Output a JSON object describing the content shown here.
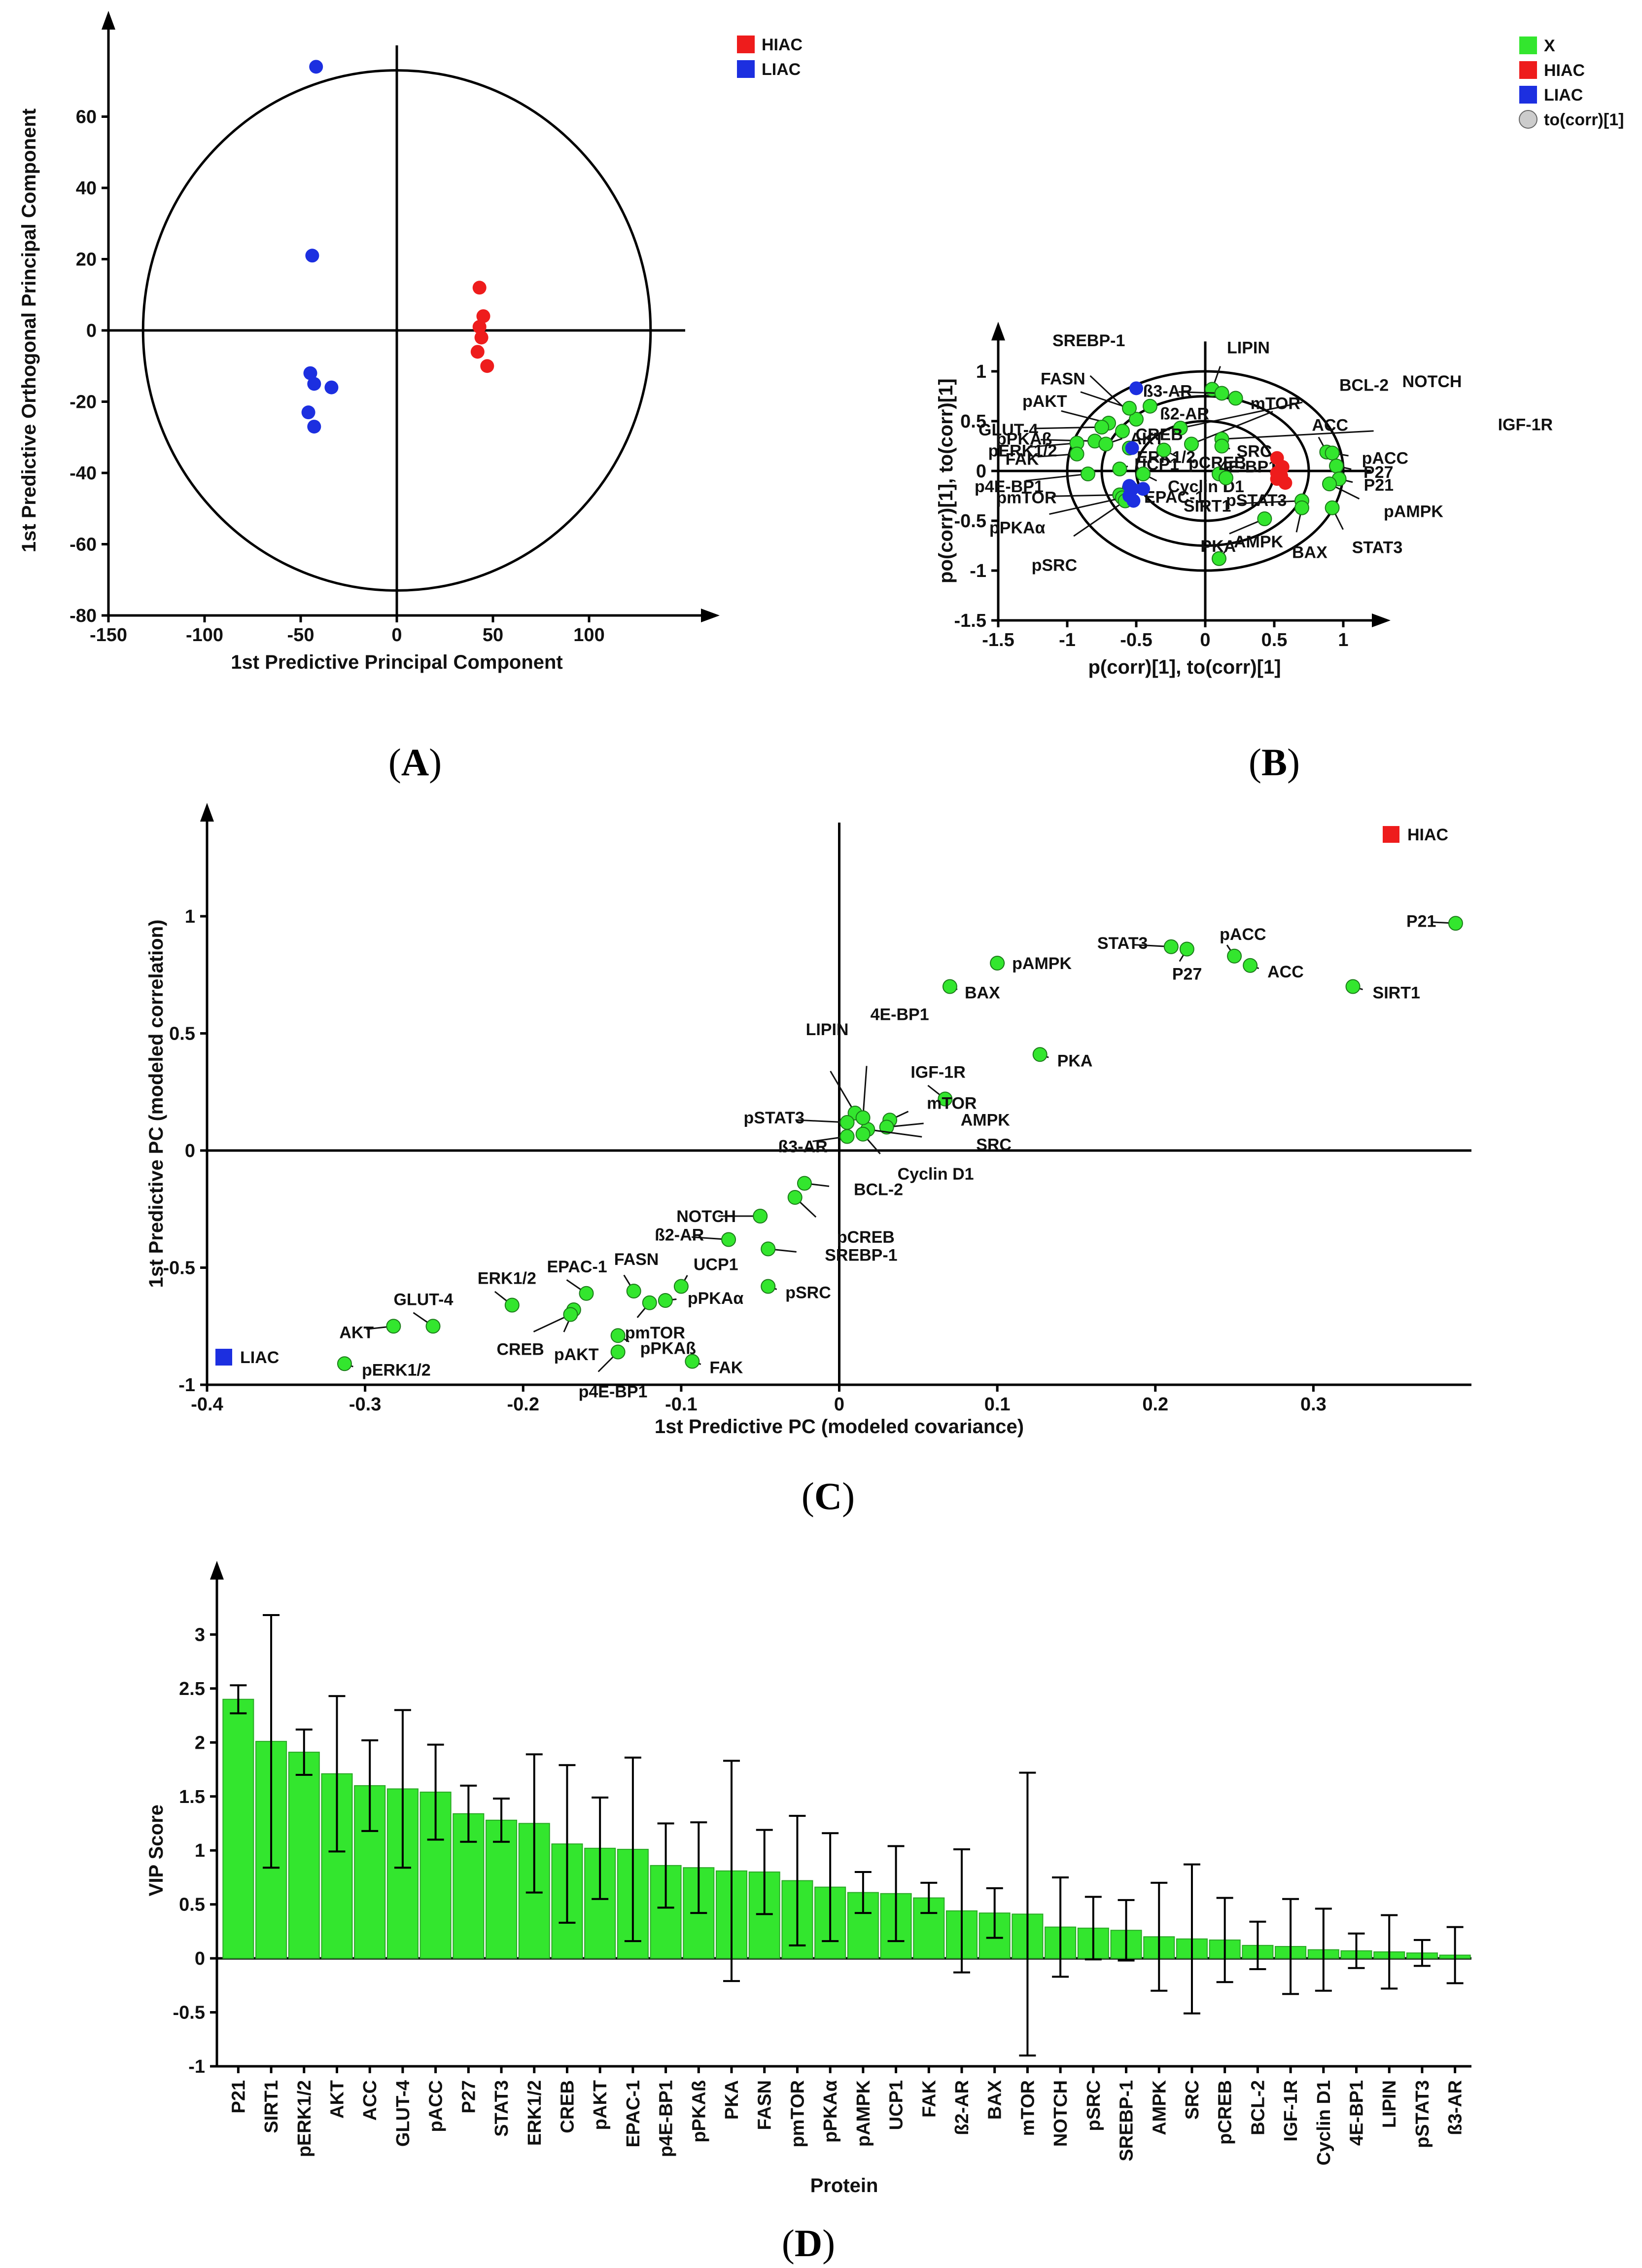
{
  "panel_labels": [
    "A",
    "B",
    "C",
    "D"
  ],
  "colors": {
    "green": "#33e62e",
    "red": "#ee1c1c",
    "blue": "#1c2fe0",
    "grey": "#cccccc"
  },
  "chart_data": [
    {
      "id": "A",
      "type": "scatter",
      "xlabel": "1st Predictive Principal Component",
      "ylabel": "1st Predictive Orthogonal Principal Component",
      "xlim": [
        -150,
        150
      ],
      "ylim": [
        -80,
        80
      ],
      "xticks": [
        -150,
        -100,
        -50,
        0,
        50,
        100
      ],
      "yticks": [
        -80,
        -60,
        -40,
        -20,
        0,
        20,
        40,
        60
      ],
      "ellipse": {
        "rx": 132,
        "ry": 73
      },
      "legend": [
        {
          "label": "HIAC",
          "color": "#ee1c1c"
        },
        {
          "label": "LIAC",
          "color": "#1c2fe0"
        }
      ],
      "series": [
        {
          "name": "HIAC",
          "color": "#ee1c1c",
          "points": [
            [
              43,
              12
            ],
            [
              45,
              4
            ],
            [
              43,
              1
            ],
            [
              44,
              -2
            ],
            [
              42,
              -6
            ],
            [
              47,
              -10
            ]
          ]
        },
        {
          "name": "LIAC",
          "color": "#1c2fe0",
          "points": [
            [
              -42,
              74
            ],
            [
              -44,
              21
            ],
            [
              -45,
              -12
            ],
            [
              -43,
              -15
            ],
            [
              -34,
              -16
            ],
            [
              -46,
              -23
            ],
            [
              -43,
              -27
            ]
          ]
        }
      ]
    },
    {
      "id": "B",
      "type": "scatter",
      "xlabel": "p(corr)[1], to(corr)[1]",
      "ylabel": "po(corr)[1], to(corr)[1]",
      "xlim": [
        -1.5,
        1.2
      ],
      "ylim": [
        -1.5,
        1.3
      ],
      "xticks": [
        -1.5,
        -1,
        -0.5,
        0,
        0.5,
        1
      ],
      "yticks": [
        -1.5,
        -1,
        -0.5,
        0,
        0.5,
        1
      ],
      "circles": [
        0.5,
        0.75,
        1.0
      ],
      "legend": [
        {
          "label": "X",
          "color": "#33e62e"
        },
        {
          "label": "HIAC",
          "color": "#ee1c1c"
        },
        {
          "label": "LIAC",
          "color": "#1c2fe0"
        },
        {
          "label": "to(corr)[1]",
          "color": "#cccccc"
        }
      ],
      "points": [
        {
          "label": "LIPIN",
          "x": 0.05,
          "y": 0.82
        },
        {
          "label": "ß3-AR",
          "x": 0.12,
          "y": 0.78
        },
        {
          "label": "mTOR",
          "x": 0.22,
          "y": 0.73
        },
        {
          "label": "SREBP-1",
          "x": -0.5,
          "y": 0.52
        },
        {
          "label": "FASN",
          "x": -0.55,
          "y": 0.63
        },
        {
          "label": "ß2-AR",
          "x": -0.4,
          "y": 0.65
        },
        {
          "label": "pAKT",
          "x": -0.7,
          "y": 0.48
        },
        {
          "label": "GLUT-4",
          "x": -0.75,
          "y": 0.44
        },
        {
          "label": "AKT",
          "x": -0.6,
          "y": 0.4
        },
        {
          "label": "NOTCH",
          "x": -0.18,
          "y": 0.43
        },
        {
          "label": "BCL-2",
          "x": -0.1,
          "y": 0.27
        },
        {
          "label": "IGF-1R",
          "x": 0.12,
          "y": 0.32
        },
        {
          "label": "pPKAß",
          "x": -0.8,
          "y": 0.3
        },
        {
          "label": "CREB",
          "x": -0.72,
          "y": 0.27
        },
        {
          "label": "pERK1/2",
          "x": -0.93,
          "y": 0.28
        },
        {
          "label": "ERK1/2",
          "x": -0.55,
          "y": 0.23
        },
        {
          "label": "SRC",
          "x": 0.12,
          "y": 0.25
        },
        {
          "label": "pCREB",
          "x": -0.3,
          "y": 0.21
        },
        {
          "label": "FAK",
          "x": -0.93,
          "y": 0.17
        },
        {
          "label": "ACC",
          "x": 0.88,
          "y": 0.19
        },
        {
          "label": "pACC",
          "x": 0.92,
          "y": 0.18
        },
        {
          "label": "P27",
          "x": 0.95,
          "y": 0.05
        },
        {
          "label": "UCP1",
          "x": -0.62,
          "y": 0.02
        },
        {
          "label": "4E-BP1",
          "x": 0.1,
          "y": -0.03
        },
        {
          "label": "Cyclin D1",
          "x": -0.45,
          "y": -0.03
        },
        {
          "label": "pSTAT3",
          "x": 0.15,
          "y": -0.07
        },
        {
          "label": "p4E-BP1",
          "x": -0.85,
          "y": -0.03
        },
        {
          "label": "P21",
          "x": 0.97,
          "y": -0.08
        },
        {
          "label": "pAMPK",
          "x": 0.9,
          "y": -0.13
        },
        {
          "label": "EPAC-1",
          "x": -0.55,
          "y": -0.17
        },
        {
          "label": "pmTOR",
          "x": -0.62,
          "y": -0.24
        },
        {
          "label": "pPKAα",
          "x": -0.6,
          "y": -0.27
        },
        {
          "label": "pSRC",
          "x": -0.58,
          "y": -0.3
        },
        {
          "label": "SIRT1",
          "x": 0.7,
          "y": -0.3
        },
        {
          "label": "BAX",
          "x": 0.7,
          "y": -0.37
        },
        {
          "label": "STAT3",
          "x": 0.92,
          "y": -0.37
        },
        {
          "label": "PKA",
          "x": 0.43,
          "y": -0.48
        },
        {
          "label": "AMPK",
          "x": 0.1,
          "y": -0.88
        }
      ],
      "hiac_points": [
        [
          0.52,
          0.13
        ],
        [
          0.55,
          0.02
        ],
        [
          0.52,
          -0.02
        ],
        [
          0.55,
          -0.05
        ],
        [
          0.52,
          -0.08
        ],
        [
          0.58,
          -0.12
        ],
        [
          0.56,
          0.04
        ]
      ],
      "liac_points": [
        [
          -0.5,
          0.83
        ],
        [
          -0.53,
          0.23
        ],
        [
          -0.55,
          -0.15
        ],
        [
          -0.53,
          -0.18
        ],
        [
          -0.45,
          -0.18
        ],
        [
          -0.55,
          -0.25
        ],
        [
          -0.52,
          -0.3
        ]
      ]
    },
    {
      "id": "C",
      "type": "scatter",
      "xlabel": "1st Predictive PC (modeled covariance)",
      "ylabel": "1st Predictive PC (modeled correlation)",
      "xlim": [
        -0.4,
        0.4
      ],
      "ylim": [
        -1,
        1.4
      ],
      "xticks": [
        -0.4,
        -0.3,
        -0.2,
        -0.1,
        0,
        0.1,
        0.2,
        0.3
      ],
      "yticks": [
        -1,
        -0.5,
        0,
        0.5,
        1
      ],
      "legend": [
        {
          "label": "HIAC",
          "color": "#ee1c1c"
        },
        {
          "label": "LIAC",
          "color": "#1c2fe0"
        }
      ],
      "points": [
        {
          "label": "P21",
          "x": 0.39,
          "y": 0.97
        },
        {
          "label": "SIRT1",
          "x": 0.325,
          "y": 0.7
        },
        {
          "label": "STAT3",
          "x": 0.21,
          "y": 0.87
        },
        {
          "label": "P27",
          "x": 0.22,
          "y": 0.86
        },
        {
          "label": "pACC",
          "x": 0.25,
          "y": 0.83
        },
        {
          "label": "ACC",
          "x": 0.26,
          "y": 0.79
        },
        {
          "label": "pAMPK",
          "x": 0.1,
          "y": 0.8
        },
        {
          "label": "BAX",
          "x": 0.07,
          "y": 0.7
        },
        {
          "label": "PKA",
          "x": 0.127,
          "y": 0.41
        },
        {
          "label": "IGF-1R",
          "x": 0.067,
          "y": 0.22
        },
        {
          "label": "mTOR",
          "x": 0.032,
          "y": 0.13
        },
        {
          "label": "AMPK",
          "x": 0.03,
          "y": 0.1
        },
        {
          "label": "SRC",
          "x": 0.018,
          "y": 0.09
        },
        {
          "label": "LIPIN",
          "x": 0.01,
          "y": 0.16
        },
        {
          "label": "4E-BP1",
          "x": 0.015,
          "y": 0.14
        },
        {
          "label": "pSTAT3",
          "x": 0.005,
          "y": 0.12
        },
        {
          "label": "Cyclin D1",
          "x": 0.015,
          "y": 0.07
        },
        {
          "label": "ß3-AR",
          "x": 0.005,
          "y": 0.06
        },
        {
          "label": "BCL-2",
          "x": -0.022,
          "y": -0.14
        },
        {
          "label": "pCREB",
          "x": -0.028,
          "y": -0.2
        },
        {
          "label": "NOTCH",
          "x": -0.05,
          "y": -0.28
        },
        {
          "label": "SREBP-1",
          "x": -0.045,
          "y": -0.42
        },
        {
          "label": "ß2-AR",
          "x": -0.07,
          "y": -0.38
        },
        {
          "label": "pSRC",
          "x": -0.045,
          "y": -0.58
        },
        {
          "label": "UCP1",
          "x": -0.1,
          "y": -0.58
        },
        {
          "label": "pPKAα",
          "x": -0.11,
          "y": -0.64
        },
        {
          "label": "FASN",
          "x": -0.13,
          "y": -0.6
        },
        {
          "label": "pmTOR",
          "x": -0.12,
          "y": -0.65
        },
        {
          "label": "pPKAß",
          "x": -0.14,
          "y": -0.79
        },
        {
          "label": "p4E-BP1",
          "x": -0.14,
          "y": -0.86
        },
        {
          "label": "FAK",
          "x": -0.093,
          "y": -0.9
        },
        {
          "label": "EPAC-1",
          "x": -0.16,
          "y": -0.61
        },
        {
          "label": "pAKT",
          "x": -0.168,
          "y": -0.68
        },
        {
          "label": "CREB",
          "x": -0.17,
          "y": -0.7
        },
        {
          "label": "ERK1/2",
          "x": -0.207,
          "y": -0.66
        },
        {
          "label": "GLUT-4",
          "x": -0.257,
          "y": -0.75
        },
        {
          "label": "AKT",
          "x": -0.282,
          "y": -0.75
        },
        {
          "label": "pERK1/2",
          "x": -0.313,
          "y": -0.91
        }
      ]
    },
    {
      "id": "D",
      "type": "bar",
      "xlabel": "Protein",
      "ylabel": "VIP Score",
      "ylim": [
        -1,
        3.5
      ],
      "yticks": [
        -1,
        -0.5,
        0,
        0.5,
        1,
        1.5,
        2,
        2.5,
        3
      ],
      "categories": [
        "P21",
        "SIRT1",
        "pERK1/2",
        "AKT",
        "ACC",
        "GLUT-4",
        "pACC",
        "P27",
        "STAT3",
        "ERK1/2",
        "CREB",
        "pAKT",
        "EPAC-1",
        "p4E-BP1",
        "pPKAß",
        "PKA",
        "FASN",
        "pmTOR",
        "pPKAα",
        "pAMPK",
        "UCP1",
        "FAK",
        "ß2-AR",
        "BAX",
        "mTOR",
        "NOTCH",
        "pSRC",
        "SREBP-1",
        "AMPK",
        "SRC",
        "pCREB",
        "BCL-2",
        "IGF-1R",
        "Cyclin D1",
        "4E-BP1",
        "LIPIN",
        "pSTAT3",
        "ß3-AR"
      ],
      "values": [
        2.4,
        2.01,
        1.91,
        1.71,
        1.6,
        1.57,
        1.54,
        1.34,
        1.28,
        1.25,
        1.06,
        1.02,
        1.01,
        0.86,
        0.84,
        0.81,
        0.8,
        0.72,
        0.66,
        0.61,
        0.6,
        0.56,
        0.44,
        0.42,
        0.41,
        0.29,
        0.28,
        0.26,
        0.2,
        0.18,
        0.17,
        0.12,
        0.11,
        0.08,
        0.07,
        0.06,
        0.05,
        0.03
      ],
      "errors": [
        0.13,
        1.17,
        0.21,
        0.72,
        0.42,
        0.73,
        0.44,
        0.26,
        0.2,
        0.64,
        0.73,
        0.47,
        0.85,
        0.39,
        0.42,
        1.02,
        0.39,
        0.6,
        0.5,
        0.19,
        0.44,
        0.14,
        0.57,
        0.23,
        1.31,
        0.46,
        0.29,
        0.28,
        0.5,
        0.69,
        0.39,
        0.22,
        0.44,
        0.38,
        0.16,
        0.34,
        0.12,
        0.26
      ]
    }
  ]
}
